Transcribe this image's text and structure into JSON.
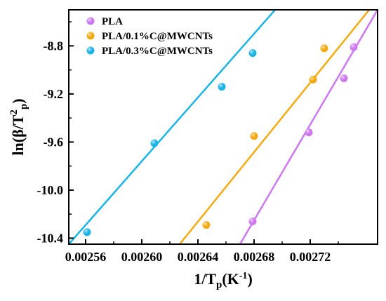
{
  "chart_data": {
    "type": "scatter",
    "xlabel": {
      "main": "1/T",
      "sub": "p",
      "unit_open": "(K",
      "unit_sup": "-1",
      "unit_close": ")"
    },
    "ylabel": {
      "prefix": "ln(β/T",
      "sup": "2",
      "sub": "p",
      "suffix": ")"
    },
    "xlim": [
      0.002548,
      0.002768
    ],
    "ylim": [
      -10.45,
      -8.5
    ],
    "x_ticks": [
      0.00256,
      0.0026,
      0.00264,
      0.00268,
      0.00272
    ],
    "x_tick_labels": [
      "0.00256",
      "0.00260",
      "0.00264",
      "0.00268",
      "0.00272"
    ],
    "y_ticks": [
      -8.8,
      -9.2,
      -9.6,
      -10.0,
      -10.4
    ],
    "y_tick_labels": [
      "-8.8",
      "-9.2",
      "-9.6",
      "-10.0",
      "-10.4"
    ],
    "grid": false,
    "legend_position": "top-left",
    "series": [
      {
        "name": "PLA",
        "color": "#cc77ee",
        "points": [
          {
            "x": 0.002679,
            "y": -10.26
          },
          {
            "x": 0.002719,
            "y": -9.52
          },
          {
            "x": 0.002744,
            "y": -9.07
          },
          {
            "x": 0.002751,
            "y": -8.81
          }
        ],
        "fit": [
          [
            0.00267,
            -10.45
          ],
          [
            0.002768,
            -8.5
          ]
        ]
      },
      {
        "name": "PLA/0.1%C@MWCNTs",
        "color": "#f2aa10",
        "points": [
          {
            "x": 0.002646,
            "y": -10.29
          },
          {
            "x": 0.00268,
            "y": -9.55
          },
          {
            "x": 0.002722,
            "y": -9.08
          },
          {
            "x": 0.00273,
            "y": -8.82
          }
        ],
        "fit": [
          [
            0.002627,
            -10.45
          ],
          [
            0.002762,
            -8.5
          ]
        ]
      },
      {
        "name": "PLA/0.3%C@MWCNTs",
        "color": "#1ab3e6",
        "points": [
          {
            "x": 0.002561,
            "y": -10.35
          },
          {
            "x": 0.002609,
            "y": -9.61
          },
          {
            "x": 0.002657,
            "y": -9.14
          },
          {
            "x": 0.002679,
            "y": -8.86
          }
        ],
        "fit": [
          [
            0.002548,
            -10.45
          ],
          [
            0.002695,
            -8.5
          ]
        ]
      }
    ]
  }
}
